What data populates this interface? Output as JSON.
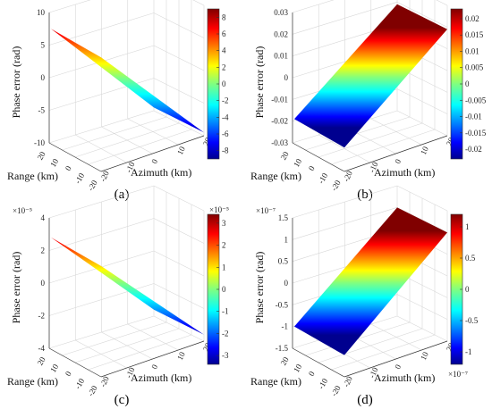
{
  "chart_data": [
    {
      "type": "surface",
      "panel": "(a)",
      "zlabel": "Phase error (rad)",
      "xlabel": "Range (km)",
      "ylabel": "Azimuth (km)",
      "x_ticks": [
        "20",
        "10",
        "0",
        "-10",
        "-20"
      ],
      "y_ticks": [
        "-20",
        "-10",
        "0",
        "10",
        "20"
      ],
      "z_ticks": [
        "10",
        "5",
        "0",
        "-5",
        "-10"
      ],
      "z_exponent": "",
      "zlim": [
        -10,
        10
      ],
      "surface_corners": {
        "azimuth_min": 7.5,
        "azimuth_max": -9.5
      },
      "colorbar_ticks": [
        "8",
        "6",
        "4",
        "2",
        "0",
        "-2",
        "-4",
        "-6",
        "-8"
      ],
      "colorbar_range": [
        -9,
        9
      ],
      "colorbar_exponent": ""
    },
    {
      "type": "surface",
      "panel": "(b)",
      "zlabel": "Phase error (rad)",
      "xlabel": "Range (km)",
      "ylabel": "Azimuth (km)",
      "x_ticks": [
        "20",
        "10",
        "0",
        "-10",
        "-20"
      ],
      "y_ticks": [
        "-20",
        "-10",
        "0",
        "10",
        "20"
      ],
      "z_ticks": [
        "0.03",
        "0.02",
        "0.01",
        "0",
        "-0.01",
        "-0.02",
        "-0.03"
      ],
      "z_exponent": "",
      "zlim": [
        -0.03,
        0.03
      ],
      "surface_corners": {
        "azimuth_min": -0.019,
        "azimuth_max": 0.019
      },
      "colorbar_ticks": [
        "0.02",
        "0.015",
        "0.01",
        "0.005",
        "0",
        "-0.005",
        "-0.01",
        "-0.015",
        "-0.02"
      ],
      "colorbar_range": [
        -0.023,
        0.023
      ],
      "colorbar_exponent": ""
    },
    {
      "type": "surface",
      "panel": "(c)",
      "zlabel": "Phase error (rad)",
      "xlabel": "Range (km)",
      "ylabel": "Azimuth (km)",
      "x_ticks": [
        "20",
        "10",
        "0",
        "-10",
        "-20"
      ],
      "y_ticks": [
        "-20",
        "-10",
        "0",
        "10",
        "20"
      ],
      "z_ticks": [
        "4",
        "2",
        "0",
        "-2",
        "-4"
      ],
      "z_exponent": "×10⁻⁵",
      "zlim": [
        -4,
        4
      ],
      "surface_corners": {
        "azimuth_min": 2.8,
        "azimuth_max": -3.6
      },
      "colorbar_ticks": [
        "3",
        "2",
        "1",
        "0",
        "-1",
        "-2",
        "-3"
      ],
      "colorbar_range": [
        -3.4,
        3.4
      ],
      "colorbar_exponent": "×10⁻⁵"
    },
    {
      "type": "surface",
      "panel": "(d)",
      "zlabel": "Phase error (rad)",
      "xlabel": "Range (km)",
      "ylabel": "Azimuth (km)",
      "x_ticks": [
        "20",
        "10",
        "0",
        "-10",
        "-20"
      ],
      "y_ticks": [
        "-20",
        "-10",
        "0",
        "10",
        "20"
      ],
      "z_ticks": [
        "1.5",
        "1",
        "0.5",
        "0",
        "-0.5",
        "-1",
        "-1.5"
      ],
      "z_exponent": "×10⁻⁷",
      "zlim": [
        -1.5,
        1.5
      ],
      "surface_corners": {
        "azimuth_min": -1.0,
        "azimuth_max": 1.0
      },
      "colorbar_ticks": [
        "1",
        "0.5",
        "0",
        "-0.5",
        "-1"
      ],
      "colorbar_range": [
        -1.2,
        1.2
      ],
      "colorbar_exponent": "×10⁻⁷"
    }
  ]
}
